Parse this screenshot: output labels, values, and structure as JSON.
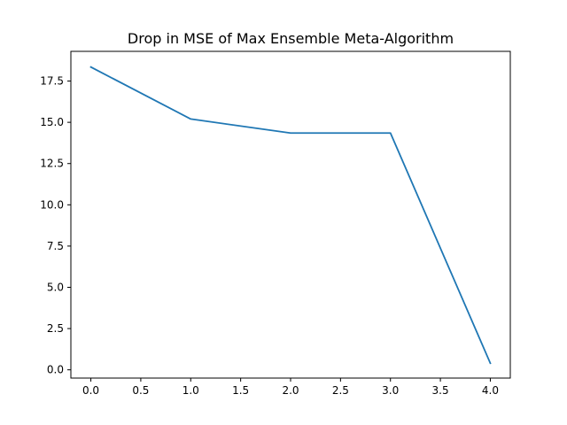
{
  "chart_data": {
    "type": "line",
    "title": "Drop in MSE of Max Ensemble Meta-Algorithm",
    "xlabel": "",
    "ylabel": "",
    "x": [
      0,
      1,
      2,
      3,
      4
    ],
    "series": [
      {
        "values": [
          18.35,
          15.2,
          14.35,
          14.35,
          0.4
        ],
        "color": "#1f77b4"
      }
    ],
    "xlim": [
      -0.2,
      4.2
    ],
    "ylim": [
      -0.5,
      19.3
    ],
    "xticks": [
      0.0,
      0.5,
      1.0,
      1.5,
      2.0,
      2.5,
      3.0,
      3.5,
      4.0
    ],
    "xtick_labels": [
      "0.0",
      "0.5",
      "1.0",
      "1.5",
      "2.0",
      "2.5",
      "3.0",
      "3.5",
      "4.0"
    ],
    "yticks": [
      0.0,
      2.5,
      5.0,
      7.5,
      10.0,
      12.5,
      15.0,
      17.5
    ],
    "ytick_labels": [
      "0.0",
      "2.5",
      "5.0",
      "7.5",
      "10.0",
      "12.5",
      "15.0",
      "17.5"
    ],
    "grid": false,
    "legend": "none"
  }
}
